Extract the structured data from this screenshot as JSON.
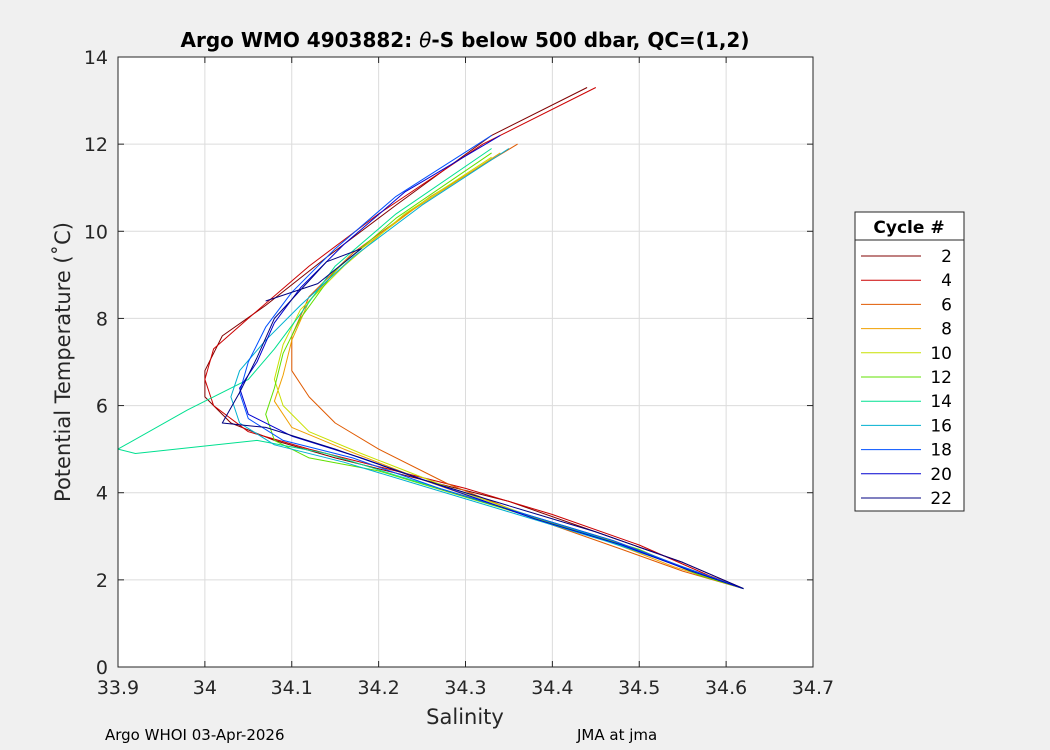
{
  "chart_data": {
    "type": "line",
    "title_prefix": "Argo WMO 4903882: ",
    "title_theta": "θ",
    "title_suffix": "-S below 500 dbar,  QC=(1,2)",
    "xlabel": "Salinity",
    "ylabel": "Potential Temperature (˚C)",
    "xlim": [
      33.9,
      34.7
    ],
    "ylim": [
      0,
      14
    ],
    "xticks": [
      33.9,
      34.0,
      34.1,
      34.2,
      34.3,
      34.4,
      34.5,
      34.6,
      34.7
    ],
    "xtick_labels": [
      "33.9",
      "34",
      "34.1",
      "34.2",
      "34.3",
      "34.4",
      "34.5",
      "34.6",
      "34.7"
    ],
    "yticks": [
      0,
      2,
      4,
      6,
      8,
      10,
      12,
      14
    ],
    "ytick_labels": [
      "0",
      "2",
      "4",
      "6",
      "8",
      "10",
      "12",
      "14"
    ],
    "grid": true,
    "legend_title": "Cycle #",
    "legend_position": "outside-right",
    "series": [
      {
        "name": "2",
        "color": "#800000",
        "points": [
          [
            34.44,
            13.3
          ],
          [
            34.33,
            12.2
          ],
          [
            34.22,
            10.6
          ],
          [
            34.14,
            9.4
          ],
          [
            34.07,
            8.3
          ],
          [
            34.02,
            7.6
          ],
          [
            34.0,
            6.8
          ],
          [
            34.0,
            6.2
          ],
          [
            34.03,
            5.6
          ],
          [
            34.08,
            5.2
          ],
          [
            34.15,
            4.8
          ],
          [
            34.25,
            4.3
          ],
          [
            34.35,
            3.8
          ],
          [
            34.45,
            3.1
          ],
          [
            34.55,
            2.4
          ],
          [
            34.62,
            1.8
          ]
        ]
      },
      {
        "name": "4",
        "color": "#cc0000",
        "points": [
          [
            34.45,
            13.3
          ],
          [
            34.32,
            12.0
          ],
          [
            34.2,
            10.4
          ],
          [
            34.12,
            9.2
          ],
          [
            34.05,
            8.0
          ],
          [
            34.01,
            7.3
          ],
          [
            34.0,
            6.6
          ],
          [
            34.01,
            6.0
          ],
          [
            34.05,
            5.4
          ],
          [
            34.12,
            5.0
          ],
          [
            34.2,
            4.6
          ],
          [
            34.3,
            4.1
          ],
          [
            34.4,
            3.5
          ],
          [
            34.5,
            2.8
          ],
          [
            34.58,
            2.1
          ],
          [
            34.62,
            1.8
          ]
        ]
      },
      {
        "name": "6",
        "color": "#e05a00",
        "points": [
          [
            34.36,
            12.0
          ],
          [
            34.26,
            10.8
          ],
          [
            34.17,
            9.5
          ],
          [
            34.12,
            8.5
          ],
          [
            34.1,
            7.6
          ],
          [
            34.1,
            6.8
          ],
          [
            34.12,
            6.2
          ],
          [
            34.15,
            5.6
          ],
          [
            34.2,
            5.0
          ],
          [
            34.28,
            4.2
          ],
          [
            34.38,
            3.4
          ],
          [
            34.48,
            2.7
          ],
          [
            34.55,
            2.2
          ],
          [
            34.62,
            1.8
          ]
        ]
      },
      {
        "name": "8",
        "color": "#f0a000",
        "points": [
          [
            34.34,
            11.8
          ],
          [
            34.24,
            10.5
          ],
          [
            34.16,
            9.3
          ],
          [
            34.12,
            8.4
          ],
          [
            34.1,
            7.5
          ],
          [
            34.09,
            6.7
          ],
          [
            34.08,
            6.1
          ],
          [
            34.1,
            5.5
          ],
          [
            34.16,
            5.0
          ],
          [
            34.25,
            4.3
          ],
          [
            34.35,
            3.6
          ],
          [
            34.45,
            3.0
          ],
          [
            34.54,
            2.3
          ],
          [
            34.62,
            1.8
          ]
        ]
      },
      {
        "name": "10",
        "color": "#c8e000",
        "points": [
          [
            34.33,
            11.7
          ],
          [
            34.23,
            10.4
          ],
          [
            34.16,
            9.2
          ],
          [
            34.11,
            8.2
          ],
          [
            34.09,
            7.4
          ],
          [
            34.08,
            6.6
          ],
          [
            34.09,
            6.0
          ],
          [
            34.12,
            5.4
          ],
          [
            34.18,
            4.9
          ],
          [
            34.27,
            4.2
          ],
          [
            34.37,
            3.5
          ],
          [
            34.47,
            2.9
          ],
          [
            34.55,
            2.3
          ],
          [
            34.62,
            1.8
          ]
        ]
      },
      {
        "name": "12",
        "color": "#60e000",
        "points": [
          [
            34.33,
            11.8
          ],
          [
            34.22,
            10.3
          ],
          [
            34.15,
            9.1
          ],
          [
            34.11,
            8.0
          ],
          [
            34.09,
            7.2
          ],
          [
            34.08,
            6.4
          ],
          [
            34.07,
            5.8
          ],
          [
            34.08,
            5.2
          ],
          [
            34.12,
            4.8
          ],
          [
            34.2,
            4.5
          ],
          [
            34.3,
            3.9
          ],
          [
            34.4,
            3.3
          ],
          [
            34.5,
            2.7
          ],
          [
            34.57,
            2.1
          ],
          [
            34.62,
            1.8
          ]
        ]
      },
      {
        "name": "14",
        "color": "#00e090",
        "points": [
          [
            34.33,
            11.9
          ],
          [
            34.22,
            10.4
          ],
          [
            34.15,
            9.2
          ],
          [
            34.11,
            8.1
          ],
          [
            34.08,
            7.3
          ],
          [
            34.05,
            6.6
          ],
          [
            33.98,
            5.9
          ],
          [
            33.9,
            5.0
          ],
          [
            33.92,
            4.9
          ],
          [
            34.06,
            5.2
          ],
          [
            34.14,
            4.9
          ],
          [
            34.22,
            4.4
          ],
          [
            34.32,
            3.8
          ],
          [
            34.42,
            3.2
          ],
          [
            34.52,
            2.5
          ],
          [
            34.62,
            1.8
          ]
        ]
      },
      {
        "name": "16",
        "color": "#00b0d0",
        "points": [
          [
            34.35,
            11.9
          ],
          [
            34.25,
            10.6
          ],
          [
            34.17,
            9.4
          ],
          [
            34.11,
            8.3
          ],
          [
            34.07,
            7.5
          ],
          [
            34.04,
            6.8
          ],
          [
            34.03,
            6.2
          ],
          [
            34.04,
            5.6
          ],
          [
            34.08,
            5.1
          ],
          [
            34.16,
            4.7
          ],
          [
            34.26,
            4.1
          ],
          [
            34.36,
            3.5
          ],
          [
            34.46,
            2.9
          ],
          [
            34.55,
            2.3
          ],
          [
            34.62,
            1.8
          ]
        ]
      },
      {
        "name": "18",
        "color": "#0050ff",
        "points": [
          [
            34.33,
            12.2
          ],
          [
            34.22,
            10.8
          ],
          [
            34.15,
            9.6
          ],
          [
            34.1,
            8.6
          ],
          [
            34.07,
            7.8
          ],
          [
            34.05,
            7.0
          ],
          [
            34.04,
            6.3
          ],
          [
            34.05,
            5.7
          ],
          [
            34.09,
            5.2
          ],
          [
            34.17,
            4.8
          ],
          [
            34.27,
            4.1
          ],
          [
            34.37,
            3.5
          ],
          [
            34.47,
            2.9
          ],
          [
            34.55,
            2.3
          ],
          [
            34.62,
            1.8
          ]
        ]
      },
      {
        "name": "20",
        "color": "#0000d0",
        "points": [
          [
            34.34,
            12.2
          ],
          [
            34.23,
            10.9
          ],
          [
            34.16,
            9.7
          ],
          [
            34.11,
            8.7
          ],
          [
            34.08,
            7.9
          ],
          [
            34.06,
            7.0
          ],
          [
            34.04,
            6.4
          ],
          [
            34.05,
            5.8
          ],
          [
            34.1,
            5.3
          ],
          [
            34.18,
            4.8
          ],
          [
            34.28,
            4.1
          ],
          [
            34.38,
            3.4
          ],
          [
            34.48,
            2.8
          ],
          [
            34.56,
            2.2
          ],
          [
            34.62,
            1.8
          ]
        ]
      },
      {
        "name": "22",
        "color": "#000080",
        "points": [
          [
            34.07,
            8.4
          ],
          [
            34.13,
            8.8
          ],
          [
            34.18,
            9.6
          ],
          [
            34.14,
            9.3
          ],
          [
            34.08,
            8.0
          ],
          [
            34.06,
            7.1
          ],
          [
            34.04,
            6.3
          ],
          [
            34.02,
            5.6
          ],
          [
            34.07,
            5.5
          ],
          [
            34.15,
            5.0
          ],
          [
            34.25,
            4.3
          ],
          [
            34.35,
            3.7
          ],
          [
            34.45,
            3.1
          ],
          [
            34.55,
            2.4
          ],
          [
            34.62,
            1.8
          ]
        ]
      }
    ]
  },
  "footer": {
    "left": "Argo WHOI 03-Apr-2026",
    "right": "JMA at jma"
  }
}
